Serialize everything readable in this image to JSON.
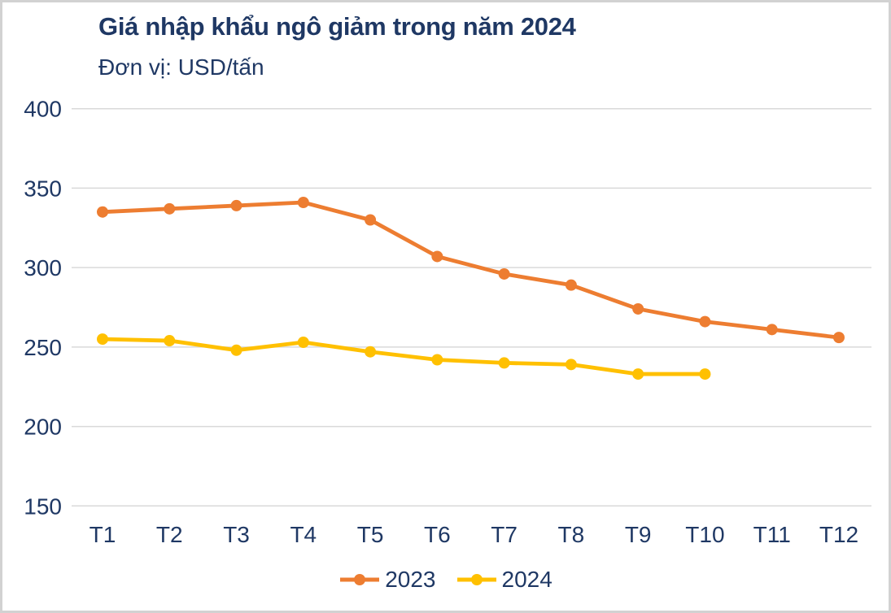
{
  "chart_data": {
    "type": "line",
    "title": "Giá nhập khẩu ngô giảm trong năm 2024",
    "subtitle": "Đơn vị: USD/tấn",
    "categories": [
      "T1",
      "T2",
      "T3",
      "T4",
      "T5",
      "T6",
      "T7",
      "T8",
      "T9",
      "T10",
      "T11",
      "T12"
    ],
    "series": [
      {
        "name": "2023",
        "color": "#ED7D31",
        "values": [
          335,
          337,
          339,
          341,
          330,
          307,
          296,
          289,
          274,
          266,
          261,
          256
        ]
      },
      {
        "name": "2024",
        "color": "#FFC000",
        "values": [
          255,
          254,
          248,
          253,
          247,
          242,
          240,
          239,
          233,
          233
        ]
      }
    ],
    "ylim": [
      150,
      400
    ],
    "yticks": [
      150,
      200,
      250,
      300,
      350,
      400
    ],
    "grid": true,
    "legend_position": "bottom",
    "colors": {
      "text": "#1F3864",
      "gridline": "#D9D9D9",
      "background": "#FFFFFF",
      "frame_border": "#D2D2D2"
    }
  }
}
